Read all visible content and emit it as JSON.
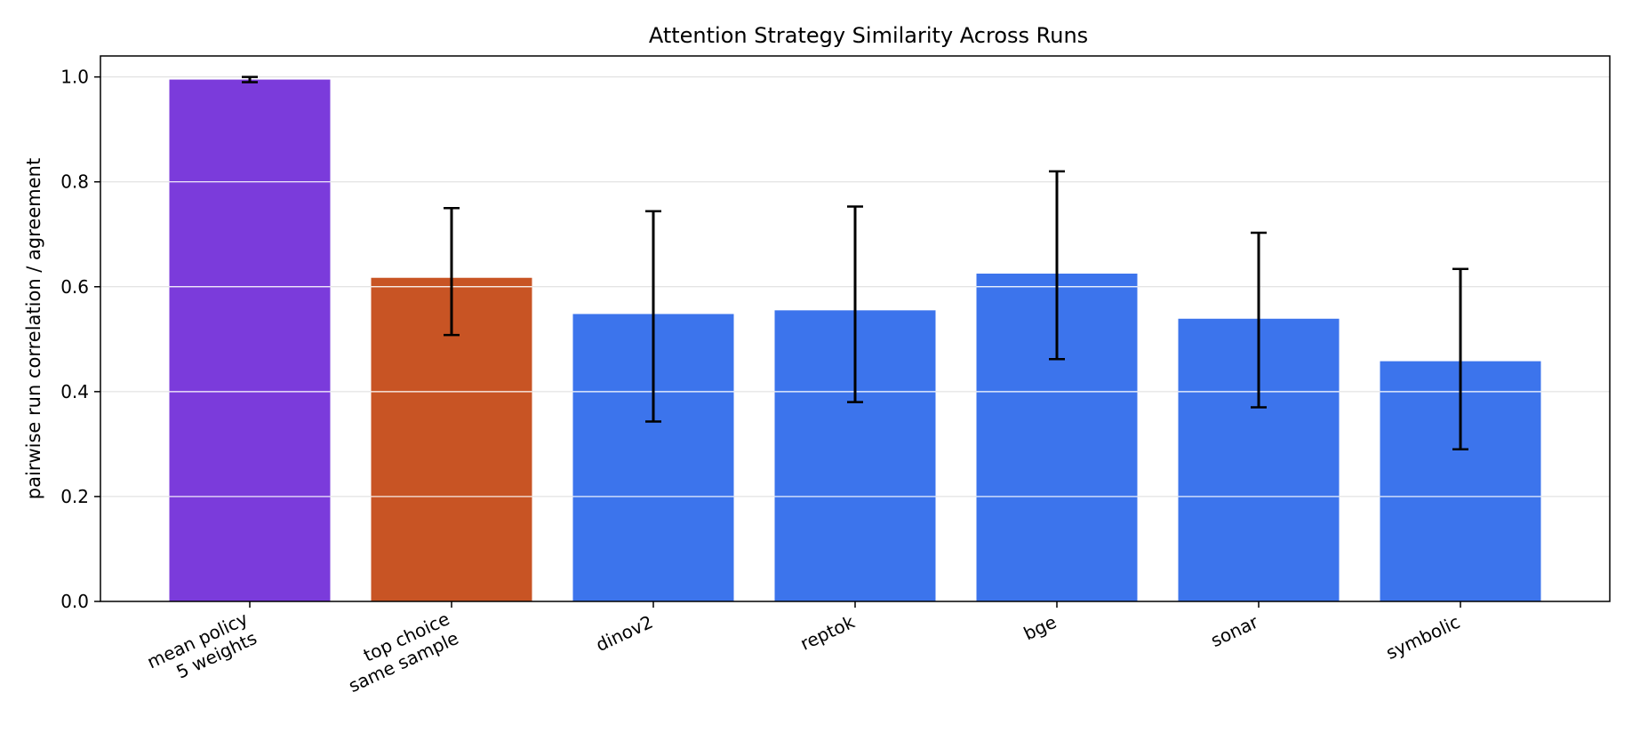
{
  "chart_data": {
    "type": "bar",
    "title": "Attention Strategy Similarity Across Runs",
    "xlabel": "",
    "ylabel": "pairwise run correlation / agreement",
    "ylim": [
      0,
      1.04
    ],
    "yticks": [
      "0.0",
      "0.2",
      "0.4",
      "0.6",
      "0.8",
      "1.0"
    ],
    "grid": "y",
    "categories": [
      [
        "mean policy",
        "5 weights"
      ],
      [
        "top choice",
        "same sample"
      ],
      [
        "dinov2"
      ],
      [
        "reptok"
      ],
      [
        "bge"
      ],
      [
        "sonar"
      ],
      [
        "symbolic"
      ]
    ],
    "values": [
      0.995,
      0.617,
      0.548,
      0.555,
      0.625,
      0.539,
      0.458
    ],
    "error_low": [
      0.99,
      0.508,
      0.343,
      0.38,
      0.462,
      0.37,
      0.29
    ],
    "error_high": [
      1.0,
      0.75,
      0.744,
      0.753,
      0.82,
      0.703,
      0.634
    ],
    "colors": [
      "#7B3BDB",
      "#C85424",
      "#3C74EC",
      "#3C74EC",
      "#3C74EC",
      "#3C74EC",
      "#3C74EC"
    ]
  }
}
